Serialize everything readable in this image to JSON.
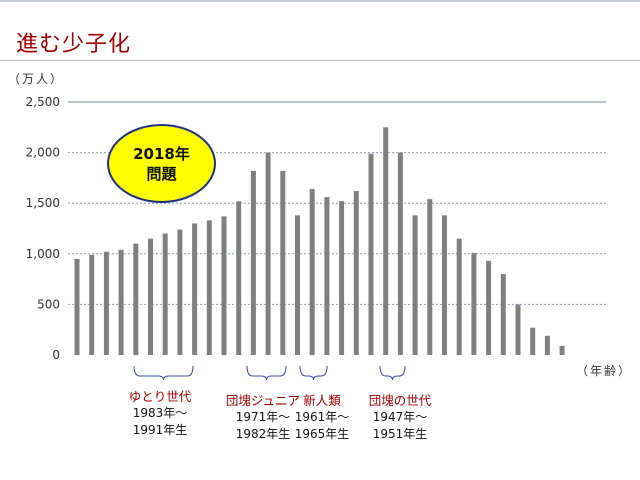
{
  "slide": {
    "title": "進む少子化"
  },
  "chart_data": {
    "type": "bar",
    "y_unit": "（万人）",
    "x_unit": "（年齢）",
    "ylim": [
      0,
      2500
    ],
    "yticks": [
      0,
      500,
      1000,
      1500,
      2000,
      2500
    ],
    "ytick_labels": [
      "0",
      "500",
      "1,000",
      "1,500",
      "2,000",
      "2,500"
    ],
    "grid": true,
    "bar_color": "#7f7f7f",
    "values": [
      950,
      990,
      1020,
      1040,
      1100,
      1150,
      1200,
      1240,
      1300,
      1330,
      1370,
      1520,
      1820,
      2000,
      1820,
      1380,
      1640,
      1560,
      1520,
      1620,
      1990,
      2250,
      2000,
      1380,
      1540,
      1380,
      1150,
      1010,
      930,
      800,
      500,
      270,
      190,
      90
    ]
  },
  "badge": {
    "line1": "2018年",
    "line2": "問題",
    "fill": "#ffff00",
    "border": "#1f2f88"
  },
  "generations": [
    {
      "name": "ゆとり世代",
      "line1": "1983年～",
      "line2": "1991年生"
    },
    {
      "name": "団塊ジュニア",
      "line1": "1971年～",
      "line2": "1982年生"
    },
    {
      "name": "新人類",
      "line1": "1961年～",
      "line2": "1965年生"
    },
    {
      "name": "団塊の世代",
      "line1": "1947年～",
      "line2": "1951年生"
    }
  ]
}
